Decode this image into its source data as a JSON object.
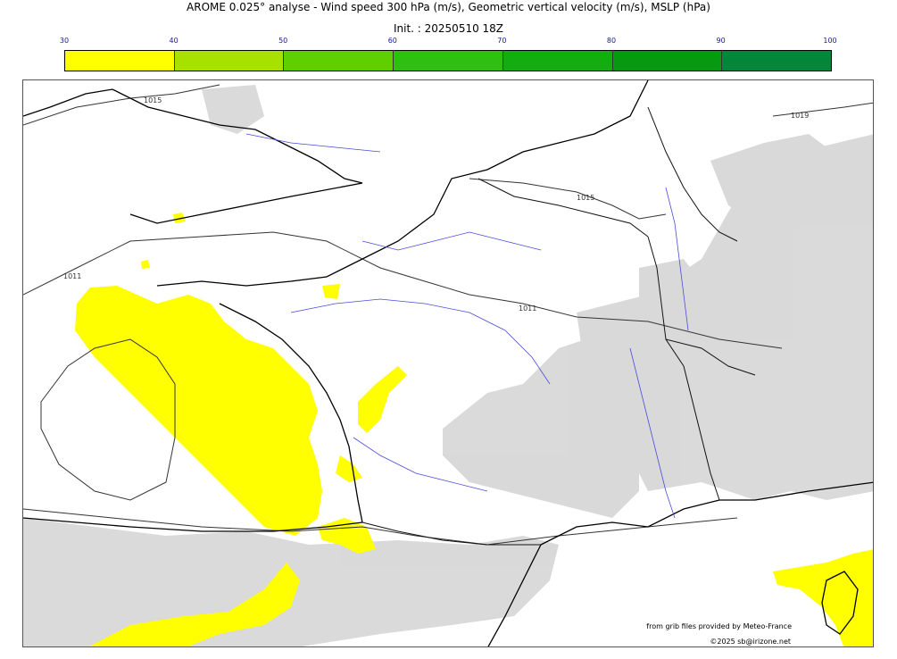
{
  "title": "AROME 0.025° analyse - Wind speed 300 hPa (m/s), Geometric vertical velocity (m/s), MSLP (hPa)",
  "subtitle": "Init. : 20250510 18Z",
  "colorbar": {
    "ticks": [
      "30",
      "40",
      "50",
      "60",
      "70",
      "80",
      "90",
      "100"
    ],
    "colors": [
      "#ffff00",
      "#a8e000",
      "#5fcf00",
      "#2fbf10",
      "#13ad10",
      "#059a10",
      "#03863a",
      "#097a4d"
    ]
  },
  "isobars": [
    {
      "label": "1015",
      "color": "#333333"
    },
    {
      "label": "1011",
      "color": "#333333"
    },
    {
      "label": "1015",
      "color": "#333333"
    },
    {
      "label": "1011",
      "color": "#333333"
    },
    {
      "label": "1019",
      "color": "#333333"
    }
  ],
  "credits": {
    "source": "from grib files provided by Meteo-France",
    "copyright": "©2025 sb@irizone.net"
  },
  "colors": {
    "grey_shading": "#d3d3d3",
    "river": "#4a4adf",
    "coast": "#000000",
    "border": "#111111",
    "isobar": "#333333"
  }
}
